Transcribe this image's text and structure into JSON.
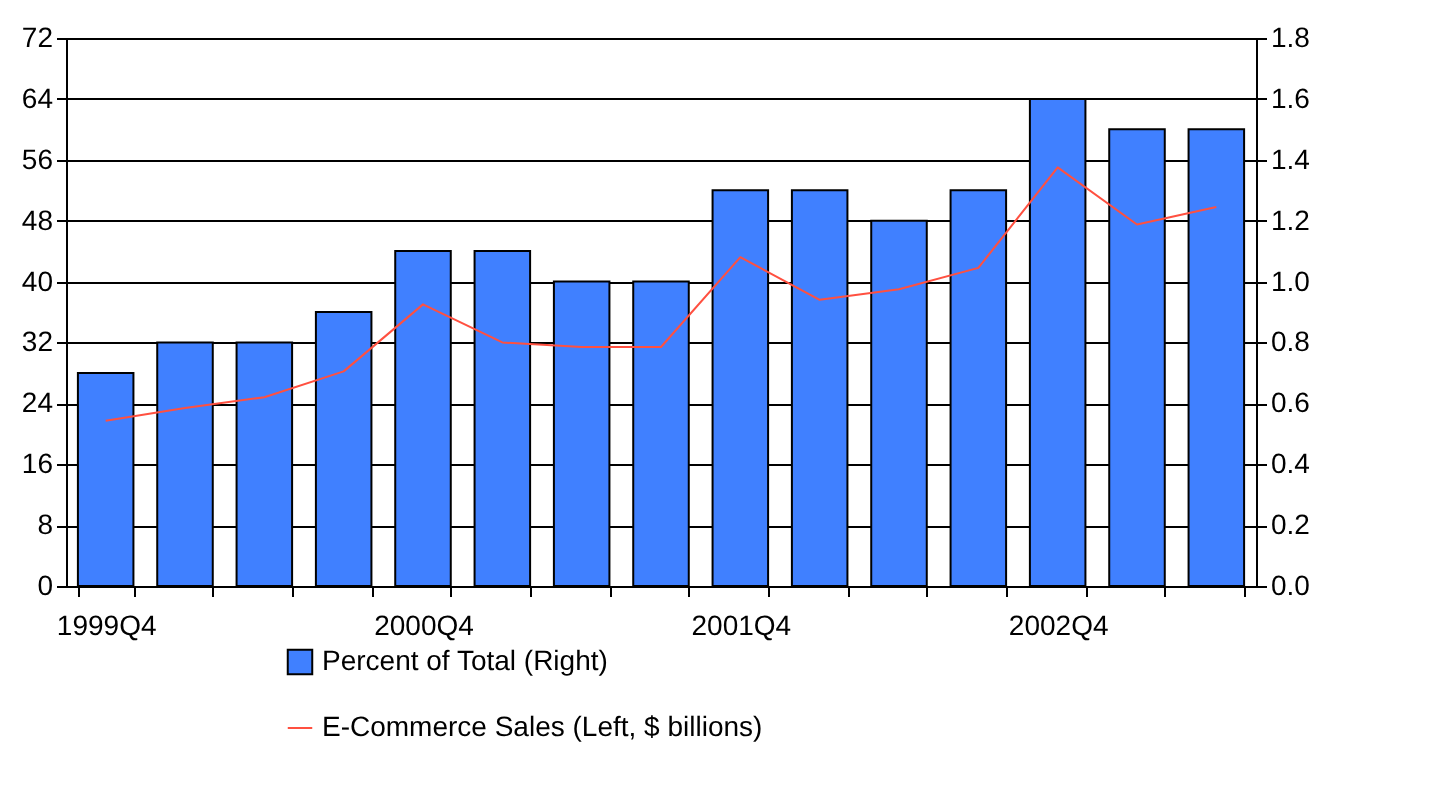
{
  "chart_data": {
    "type": "bar",
    "categories": [
      "1999Q4",
      null,
      null,
      null,
      "2000Q4",
      null,
      null,
      null,
      "2001Q4",
      null,
      null,
      null,
      "2002Q4",
      null,
      null
    ],
    "series": [
      {
        "name": "Percent of Total (Right)",
        "axis": "y2",
        "color": "#4080ff",
        "values": [
          0.7,
          0.8,
          0.8,
          0.9,
          1.1,
          1.1,
          1.0,
          1.0,
          1.3,
          1.3,
          1.2,
          1.3,
          1.6,
          1.5,
          1.5
        ]
      },
      {
        "name": "E-Commerce Sales (Left, $ billions)",
        "type": "line",
        "color": "#ff5040",
        "values": [
          21.7,
          23.4,
          24.8,
          28.2,
          37.0,
          32.0,
          31.4,
          31.4,
          43.2,
          37.6,
          39.0,
          41.8,
          55.0,
          47.5,
          49.8
        ]
      }
    ],
    "ylim": [
      0,
      72
    ],
    "yticks": [
      0,
      8,
      16,
      24,
      32,
      40,
      48,
      56,
      64,
      72
    ],
    "y2lim": [
      0,
      1.8
    ],
    "y2ticks": [
      {
        "value": 0,
        "label": "0.0"
      },
      0.2,
      0.4,
      0.6,
      0.8,
      {
        "value": 1,
        "label": "1.0"
      },
      1.2,
      1.4,
      1.6,
      1.8
    ],
    "grid": "y",
    "legend": "bottom"
  }
}
